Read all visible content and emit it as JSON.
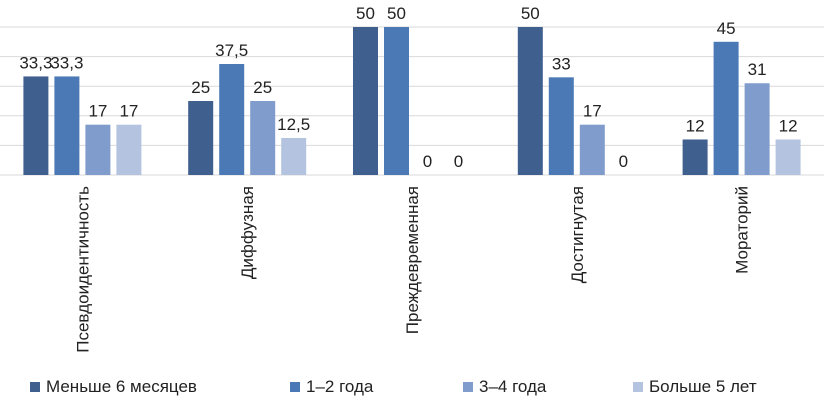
{
  "chart_data": {
    "type": "bar",
    "categories": [
      "Псевдоидентичность",
      "Диффузная",
      "Преждевременная",
      "Достигнутая",
      "Мораторий"
    ],
    "series": [
      {
        "name": "Меньше 6 месяцев",
        "color": "#3f5f8f",
        "values": [
          33.3,
          25,
          50,
          50,
          12
        ],
        "labels": [
          "33,3",
          "25",
          "50",
          "50",
          "12"
        ]
      },
      {
        "name": "1–2 года",
        "color": "#4a79b5",
        "values": [
          33.3,
          37.5,
          50,
          33,
          45
        ],
        "labels": [
          "33,3",
          "37,5",
          "50",
          "33",
          "45"
        ]
      },
      {
        "name": "3–4 года",
        "color": "#7f9ccc",
        "values": [
          17,
          25,
          0,
          17,
          31
        ],
        "labels": [
          "17",
          "25",
          "0",
          "17",
          "31"
        ]
      },
      {
        "name": "Больше 5 лет",
        "color": "#b4c4e0",
        "values": [
          17,
          12.5,
          0,
          0,
          12
        ],
        "labels": [
          "17",
          "12,5",
          "0",
          "0",
          "12"
        ]
      }
    ],
    "ylim": [
      0,
      50
    ],
    "grid": true,
    "legend_position": "bottom"
  }
}
